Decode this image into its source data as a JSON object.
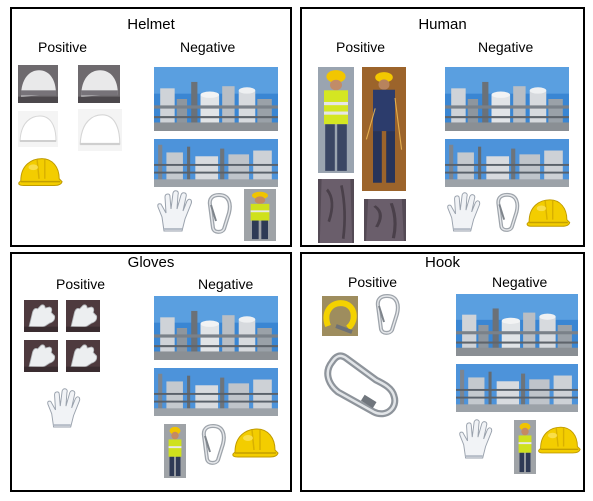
{
  "panels": [
    {
      "title": "Helmet",
      "positive": "Positive",
      "negative": "Negative"
    },
    {
      "title": "Human",
      "positive": "Positive",
      "negative": "Negative"
    },
    {
      "title": "Gloves",
      "positive": "Positive",
      "negative": "Negative"
    },
    {
      "title": "Hook",
      "positive": "Positive",
      "negative": "Negative"
    }
  ],
  "colors": {
    "border": "#000000",
    "helmet_yellow": "#f2cf00",
    "vest_yellow": "#d8e619",
    "sky_blue": "#2f7fcf",
    "metal_gray": "#a9aeb4"
  }
}
